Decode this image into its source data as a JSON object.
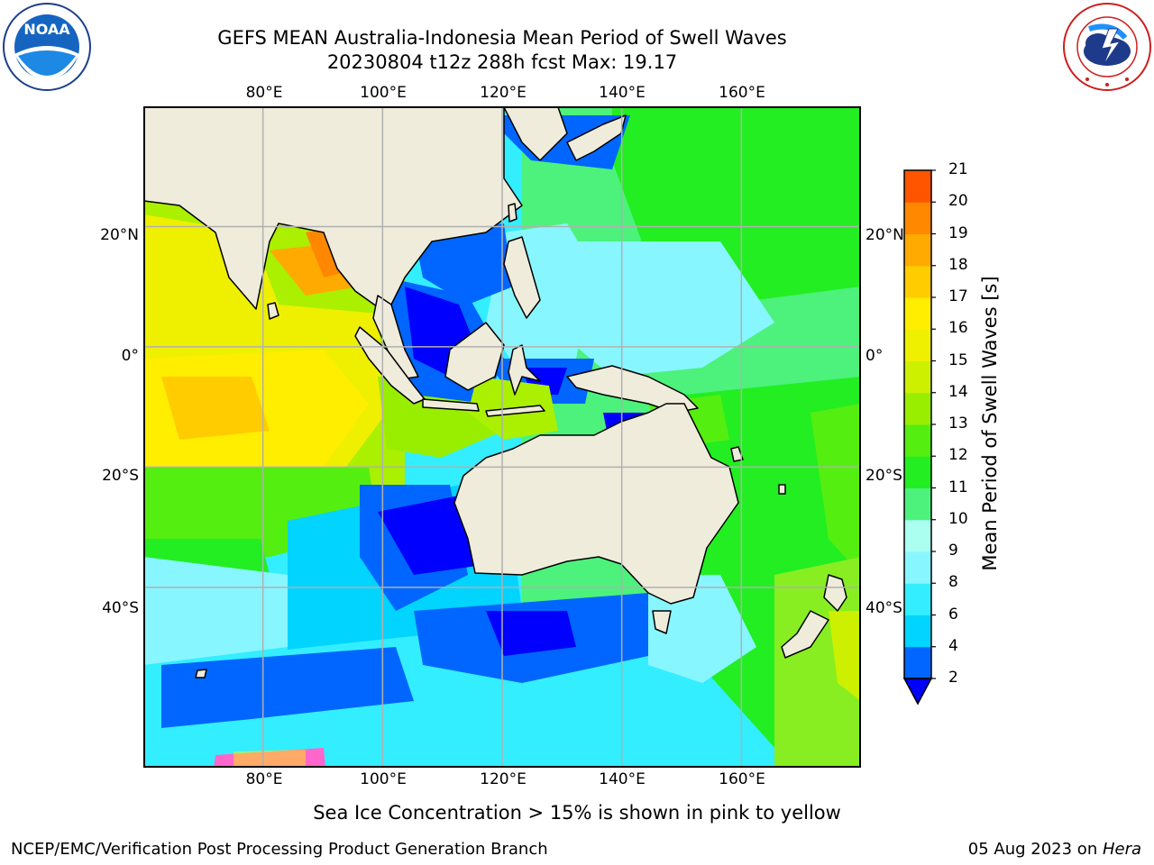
{
  "title": {
    "line1": "GEFS MEAN Australia-Indonesia Mean Period of Swell Waves",
    "line2": "20230804 t12z 288h fcst   Max: 19.17"
  },
  "logos": {
    "left": {
      "icon": "noaa-logo",
      "text": "NOAA",
      "ring_text": "NATIONAL OCEANIC AND ATMOSPHERIC ADMINISTRATION · U.S. DEPARTMENT OF COMMERCE"
    },
    "right": {
      "icon": "national-weather-service-logo",
      "ring_text": "NATIONAL WEATHER SERVICE"
    }
  },
  "map": {
    "projection": "equirectangular",
    "lon_range": [
      60,
      180
    ],
    "lat_range": [
      -70,
      40
    ],
    "lon_ticks": [
      {
        "value": 80,
        "label": "80°E"
      },
      {
        "value": 100,
        "label": "100°E"
      },
      {
        "value": 120,
        "label": "120°E"
      },
      {
        "value": 140,
        "label": "140°E"
      },
      {
        "value": 160,
        "label": "160°E"
      }
    ],
    "lat_ticks": [
      {
        "value": 20,
        "label": "20°N"
      },
      {
        "value": 0,
        "label": "0°"
      },
      {
        "value": -20,
        "label": "20°S"
      },
      {
        "value": -40,
        "label": "40°S"
      }
    ],
    "land_color": "#efecdc",
    "grid_color": "#b0b0b0"
  },
  "colorbar": {
    "label": "Mean Period of Swell Waves [s]",
    "ticks": [
      "2",
      "4",
      "6",
      "8",
      "9",
      "10",
      "11",
      "12",
      "13",
      "14",
      "15",
      "16",
      "17",
      "18",
      "19",
      "20",
      "21"
    ],
    "colors": [
      "#0066ff",
      "#00d4ff",
      "#33eeff",
      "#88f6ff",
      "#aafff0",
      "#4cf27c",
      "#22ee22",
      "#55ee11",
      "#99ee00",
      "#ccf000",
      "#eef000",
      "#ffee00",
      "#ffcc00",
      "#ffaa00",
      "#ff8800",
      "#ff5500",
      "#ff2200",
      "#ff0000"
    ],
    "under_color": "#0000ff"
  },
  "notes": {
    "sea_ice": "Sea Ice Concentration > 15% is shown in pink to yellow"
  },
  "footer": {
    "left": "NCEP/EMC/Verification Post Processing Product Generation Branch",
    "right_date": "05 Aug 2023 on ",
    "right_machine": "Hera"
  }
}
